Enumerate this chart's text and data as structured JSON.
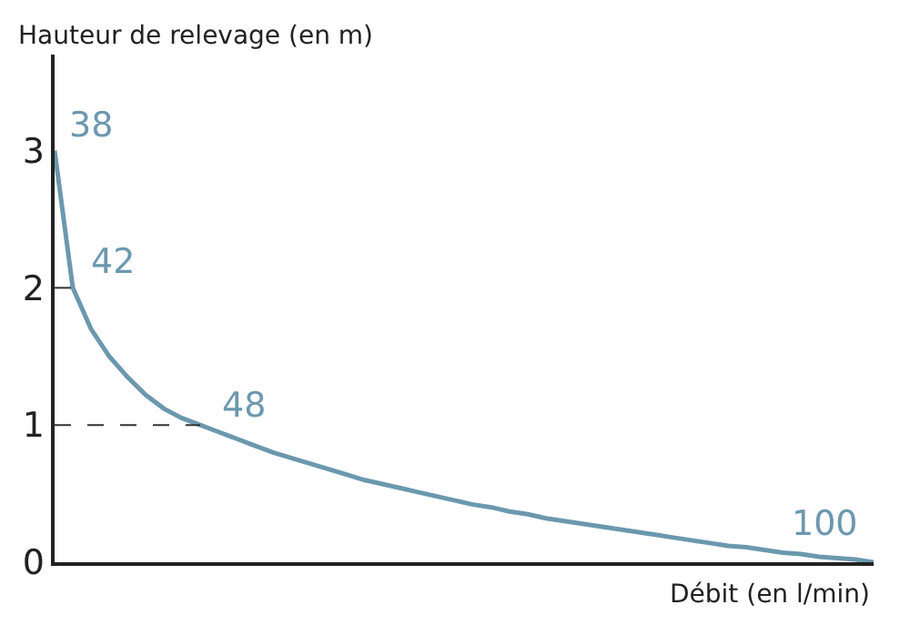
{
  "chart_data": {
    "type": "line",
    "xlabel": "Débit (en l/min)",
    "ylabel": "Hauteur de relevage (en m)",
    "categories": [
      null,
      null,
      null,
      null,
      null,
      null,
      null,
      null,
      null,
      null,
      null,
      null,
      null,
      null,
      null,
      null,
      null,
      null,
      null,
      null,
      null,
      null,
      null,
      null,
      null,
      null,
      null,
      null,
      null,
      null,
      null,
      null,
      null,
      null,
      null,
      null,
      null,
      null,
      null,
      null,
      null,
      null,
      null,
      null,
      null,
      null
    ],
    "series": [
      {
        "color": "#6b98ae",
        "values": [
          3.0,
          2.0,
          1.7,
          1.5,
          1.35,
          1.22,
          1.12,
          1.05,
          1.0,
          0.95,
          0.9,
          0.85,
          0.8,
          0.76,
          0.72,
          0.68,
          0.64,
          0.6,
          0.57,
          0.54,
          0.51,
          0.48,
          0.45,
          0.42,
          0.4,
          0.37,
          0.35,
          0.32,
          0.3,
          0.28,
          0.26,
          0.24,
          0.22,
          0.2,
          0.18,
          0.16,
          0.14,
          0.12,
          0.11,
          0.09,
          0.07,
          0.06,
          0.04,
          0.03,
          0.02,
          0.0
        ]
      },
      {
        "color": "#333333",
        "line_style": "dashed",
        "values": [
          2,
          2,
          null,
          null,
          null,
          null,
          null,
          null,
          null,
          null,
          null,
          null,
          null,
          null,
          null,
          null,
          null,
          null,
          null,
          null,
          null,
          null,
          null,
          null,
          null,
          null,
          null,
          null,
          null,
          null,
          null,
          null,
          null,
          null,
          null,
          null,
          null,
          null,
          null,
          null,
          null,
          null,
          null,
          null,
          null,
          null
        ]
      },
      {
        "color": "#333333",
        "line_style": "dashed",
        "values": [
          1,
          1,
          1,
          1,
          1,
          1,
          1,
          1,
          1,
          null,
          null,
          null,
          null,
          null,
          null,
          null,
          null,
          null,
          null,
          null,
          null,
          null,
          null,
          null,
          null,
          null,
          null,
          null,
          null,
          null,
          null,
          null,
          null,
          null,
          null,
          null,
          null,
          null,
          null,
          null,
          null,
          null,
          null,
          null,
          null,
          null
        ]
      }
    ],
    "annotations": [
      "38",
      "42",
      "48",
      "100"
    ],
    "ylim": [
      0,
      3.7
    ],
    "yticks": [
      0,
      1,
      2,
      3
    ],
    "tick_labels": "y",
    "marker": "none"
  }
}
